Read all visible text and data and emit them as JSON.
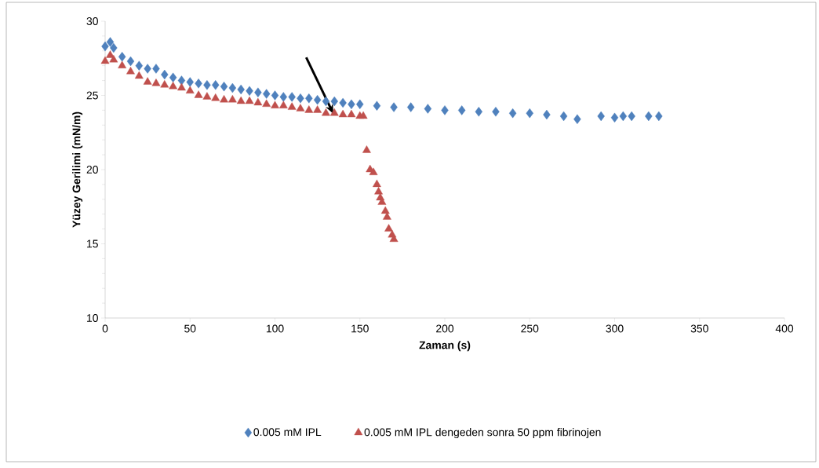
{
  "chart_data": {
    "type": "scatter",
    "xlabel": "Zaman (s)",
    "ylabel": "Yüzey Gerilimi (mN/m)",
    "xlim": [
      0,
      400
    ],
    "xticks": [
      0,
      50,
      100,
      150,
      200,
      250,
      300,
      350,
      400
    ],
    "ylim": [
      10,
      30
    ],
    "yticks": [
      10,
      15,
      20,
      25,
      30
    ],
    "legend": "bottom",
    "series": [
      {
        "name": "0.005 mM IPL",
        "color": "#4f81bd",
        "marker": "diamond",
        "x": [
          0,
          3,
          5,
          10,
          15,
          20,
          25,
          30,
          35,
          40,
          45,
          50,
          55,
          60,
          65,
          70,
          75,
          80,
          85,
          90,
          95,
          100,
          105,
          110,
          115,
          120,
          125,
          130,
          135,
          140,
          145,
          150,
          160,
          170,
          180,
          190,
          200,
          210,
          220,
          230,
          240,
          250,
          260,
          270,
          278,
          292,
          300,
          305,
          310,
          320,
          326
        ],
        "values": [
          28.3,
          28.6,
          28.2,
          27.6,
          27.3,
          27.0,
          26.8,
          26.8,
          26.4,
          26.2,
          26.0,
          25.9,
          25.8,
          25.7,
          25.7,
          25.6,
          25.5,
          25.4,
          25.3,
          25.2,
          25.1,
          25.0,
          24.9,
          24.9,
          24.8,
          24.8,
          24.7,
          24.6,
          24.6,
          24.5,
          24.4,
          24.4,
          24.3,
          24.2,
          24.2,
          24.1,
          24.0,
          24.0,
          23.9,
          23.9,
          23.8,
          23.8,
          23.7,
          23.6,
          23.4,
          23.6,
          23.5,
          23.6,
          23.6,
          23.6,
          23.6
        ]
      },
      {
        "name": "0.005 mM IPL dengeden sonra 50 ppm fibrinojen",
        "color": "#c0504d",
        "marker": "triangle",
        "x": [
          0,
          3,
          5,
          10,
          15,
          20,
          25,
          30,
          35,
          40,
          45,
          50,
          55,
          60,
          65,
          70,
          75,
          80,
          85,
          90,
          95,
          100,
          105,
          110,
          115,
          120,
          125,
          130,
          135,
          140,
          145,
          150,
          152,
          154,
          156,
          158,
          160,
          161,
          162,
          163,
          165,
          166,
          167,
          169,
          170
        ],
        "values": [
          27.3,
          27.7,
          27.4,
          27.0,
          26.6,
          26.3,
          25.9,
          25.8,
          25.7,
          25.6,
          25.5,
          25.3,
          25.0,
          24.9,
          24.8,
          24.7,
          24.7,
          24.6,
          24.6,
          24.5,
          24.4,
          24.3,
          24.3,
          24.2,
          24.1,
          24.0,
          24.0,
          23.8,
          23.8,
          23.7,
          23.7,
          23.6,
          23.6,
          21.3,
          20.0,
          19.8,
          19.0,
          18.5,
          18.1,
          17.8,
          17.2,
          16.8,
          16.0,
          15.6,
          15.3
        ]
      }
    ]
  }
}
